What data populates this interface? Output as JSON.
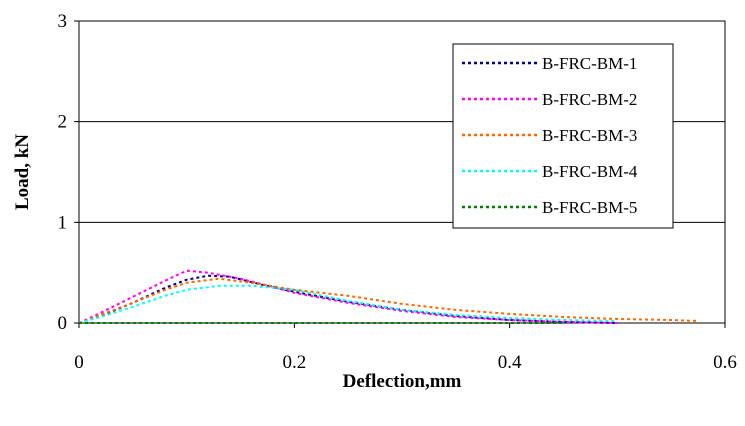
{
  "chart_data": {
    "type": "line",
    "title": "",
    "xlabel": "Deflection,mm",
    "ylabel": "Load, kN",
    "xlim": [
      0,
      0.6
    ],
    "ylim": [
      0,
      3
    ],
    "x_ticks": [
      "0",
      "0.2",
      "0.4",
      "0.6"
    ],
    "y_ticks": [
      "0",
      "1",
      "2",
      "3"
    ],
    "grid": "horizontal major gridlines",
    "legend_position": "top-right",
    "line_style": "dashed",
    "series": [
      {
        "name": "B-FRC-BM-1",
        "color": "#000080",
        "points": [
          [
            0,
            0
          ],
          [
            0.02,
            0.07
          ],
          [
            0.05,
            0.2
          ],
          [
            0.08,
            0.35
          ],
          [
            0.1,
            0.43
          ],
          [
            0.12,
            0.47
          ],
          [
            0.14,
            0.46
          ],
          [
            0.17,
            0.38
          ],
          [
            0.2,
            0.31
          ],
          [
            0.25,
            0.21
          ],
          [
            0.3,
            0.13
          ],
          [
            0.35,
            0.07
          ],
          [
            0.4,
            0.03
          ],
          [
            0.45,
            0.01
          ],
          [
            0.5,
            0
          ]
        ]
      },
      {
        "name": "B-FRC-BM-2",
        "color": "#ff00ff",
        "points": [
          [
            0,
            0
          ],
          [
            0.02,
            0.1
          ],
          [
            0.05,
            0.26
          ],
          [
            0.08,
            0.42
          ],
          [
            0.1,
            0.52
          ],
          [
            0.12,
            0.5
          ],
          [
            0.15,
            0.44
          ],
          [
            0.18,
            0.36
          ],
          [
            0.2,
            0.3
          ],
          [
            0.25,
            0.2
          ],
          [
            0.3,
            0.12
          ],
          [
            0.35,
            0.06
          ],
          [
            0.4,
            0.03
          ],
          [
            0.45,
            0.01
          ],
          [
            0.5,
            0
          ]
        ]
      },
      {
        "name": "B-FRC-BM-3",
        "color": "#ff6600",
        "points": [
          [
            0,
            0
          ],
          [
            0.02,
            0.08
          ],
          [
            0.05,
            0.2
          ],
          [
            0.08,
            0.33
          ],
          [
            0.1,
            0.4
          ],
          [
            0.13,
            0.44
          ],
          [
            0.16,
            0.4
          ],
          [
            0.2,
            0.33
          ],
          [
            0.25,
            0.27
          ],
          [
            0.3,
            0.19
          ],
          [
            0.35,
            0.13
          ],
          [
            0.4,
            0.09
          ],
          [
            0.45,
            0.06
          ],
          [
            0.5,
            0.04
          ],
          [
            0.55,
            0.03
          ],
          [
            0.575,
            0.02
          ]
        ]
      },
      {
        "name": "B-FRC-BM-4",
        "color": "#00ffff",
        "points": [
          [
            0,
            0
          ],
          [
            0.02,
            0.06
          ],
          [
            0.05,
            0.16
          ],
          [
            0.08,
            0.27
          ],
          [
            0.1,
            0.33
          ],
          [
            0.13,
            0.37
          ],
          [
            0.16,
            0.37
          ],
          [
            0.2,
            0.33
          ],
          [
            0.25,
            0.22
          ],
          [
            0.3,
            0.13
          ],
          [
            0.35,
            0.08
          ],
          [
            0.4,
            0.05
          ],
          [
            0.45,
            0.03
          ],
          [
            0.5,
            0.02
          ]
        ]
      },
      {
        "name": "B-FRC-BM-5",
        "color": "#008000",
        "points": [
          [
            0,
            0
          ],
          [
            0.2,
            0
          ],
          [
            0.4,
            0
          ],
          [
            0.45,
            0
          ]
        ]
      }
    ]
  }
}
